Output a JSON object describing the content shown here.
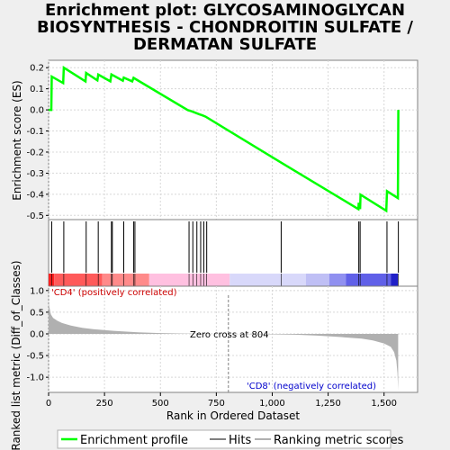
{
  "title_lines": [
    "Enrichment plot: GLYCOSAMINOGLYCAN",
    "BIOSYNTHESIS - CHONDROITIN SULFATE /",
    "DERMATAN SULFATE"
  ],
  "colors": {
    "profile": "#00ff00",
    "hits": "#000000",
    "metric_fill": "#b0b0b0",
    "pos_label": "#cc0000",
    "neg_label": "#0000cc",
    "zero_line": "#808080"
  },
  "chart_data": {
    "type": "line",
    "xlabel": "Rank in Ordered Dataset",
    "n_ranks": 1560,
    "x_ticks": [
      0,
      250,
      500,
      750,
      1000,
      1250,
      1500
    ],
    "es_panel": {
      "ylabel": "Enrichment score (ES)",
      "ylim": [
        -0.52,
        0.235
      ],
      "y_ticks": [
        0.2,
        0.1,
        0.0,
        -0.1,
        -0.2,
        -0.3,
        -0.4,
        -0.5
      ],
      "profile": [
        [
          0,
          0.0
        ],
        [
          12,
          0.0
        ],
        [
          14,
          0.158
        ],
        [
          65,
          0.127
        ],
        [
          68,
          0.2
        ],
        [
          165,
          0.135
        ],
        [
          168,
          0.175
        ],
        [
          218,
          0.14
        ],
        [
          222,
          0.167
        ],
        [
          276,
          0.135
        ],
        [
          281,
          0.168
        ],
        [
          332,
          0.138
        ],
        [
          336,
          0.153
        ],
        [
          374,
          0.135
        ],
        [
          380,
          0.152
        ],
        [
          622,
          -0.001
        ],
        [
          640,
          -0.007
        ],
        [
          658,
          -0.014
        ],
        [
          672,
          -0.02
        ],
        [
          688,
          -0.026
        ],
        [
          702,
          -0.032
        ],
        [
          1040,
          -0.25
        ],
        [
          1385,
          -0.47
        ],
        [
          1387,
          -0.44
        ],
        [
          1393,
          -0.47
        ],
        [
          1395,
          -0.402
        ],
        [
          1510,
          -0.478
        ],
        [
          1513,
          -0.385
        ],
        [
          1562,
          -0.418
        ],
        [
          1564,
          0.0
        ]
      ]
    },
    "hits": [
      14,
      68,
      168,
      222,
      281,
      285,
      336,
      380,
      386,
      628,
      645,
      663,
      680,
      694,
      707,
      1040,
      1387,
      1393,
      1513,
      1564
    ],
    "ranking_panel": {
      "ylabel": "Ranked list metric (Diff_of_Classes)",
      "ylim": [
        -1.35,
        1.1
      ],
      "y_ticks": [
        1.0,
        0.5,
        0.0,
        -0.5,
        -1.0
      ],
      "metric_curve": [
        [
          0,
          0.72
        ],
        [
          5,
          0.58
        ],
        [
          10,
          0.45
        ],
        [
          20,
          0.37
        ],
        [
          40,
          0.3
        ],
        [
          60,
          0.25
        ],
        [
          100,
          0.19
        ],
        [
          150,
          0.14
        ],
        [
          200,
          0.11
        ],
        [
          300,
          0.065
        ],
        [
          400,
          0.035
        ],
        [
          500,
          0.018
        ],
        [
          600,
          0.007
        ],
        [
          700,
          0.002
        ],
        [
          804,
          0.0
        ],
        [
          900,
          -0.004
        ],
        [
          1000,
          -0.01
        ],
        [
          1100,
          -0.02
        ],
        [
          1200,
          -0.04
        ],
        [
          1300,
          -0.07
        ],
        [
          1400,
          -0.11
        ],
        [
          1450,
          -0.15
        ],
        [
          1500,
          -0.22
        ],
        [
          1530,
          -0.3
        ],
        [
          1545,
          -0.42
        ],
        [
          1555,
          -0.62
        ],
        [
          1560,
          -0.9
        ],
        [
          1563,
          -1.3
        ]
      ],
      "zero_cross_rank": 804,
      "zero_cross_text": "Zero cross at 804",
      "pos_label": "'CD4' (positively correlated)",
      "neg_label": "'CD8' (negatively correlated)"
    },
    "color_bar": [
      {
        "from": 0,
        "to": 25,
        "color": "#ff2020"
      },
      {
        "from": 25,
        "to": 240,
        "color": "#ff5a5a"
      },
      {
        "from": 240,
        "to": 450,
        "color": "#ff8a8a"
      },
      {
        "from": 450,
        "to": 810,
        "color": "#ffc0e0"
      },
      {
        "from": 810,
        "to": 1150,
        "color": "#d8d8fa"
      },
      {
        "from": 1150,
        "to": 1255,
        "color": "#bfbff5"
      },
      {
        "from": 1255,
        "to": 1330,
        "color": "#9090f0"
      },
      {
        "from": 1330,
        "to": 1530,
        "color": "#6060e8"
      },
      {
        "from": 1530,
        "to": 1562,
        "color": "#2020c8"
      }
    ]
  },
  "legend": {
    "profile_label": "Enrichment profile",
    "hits_label": "Hits",
    "metric_label": "Ranking metric scores"
  }
}
